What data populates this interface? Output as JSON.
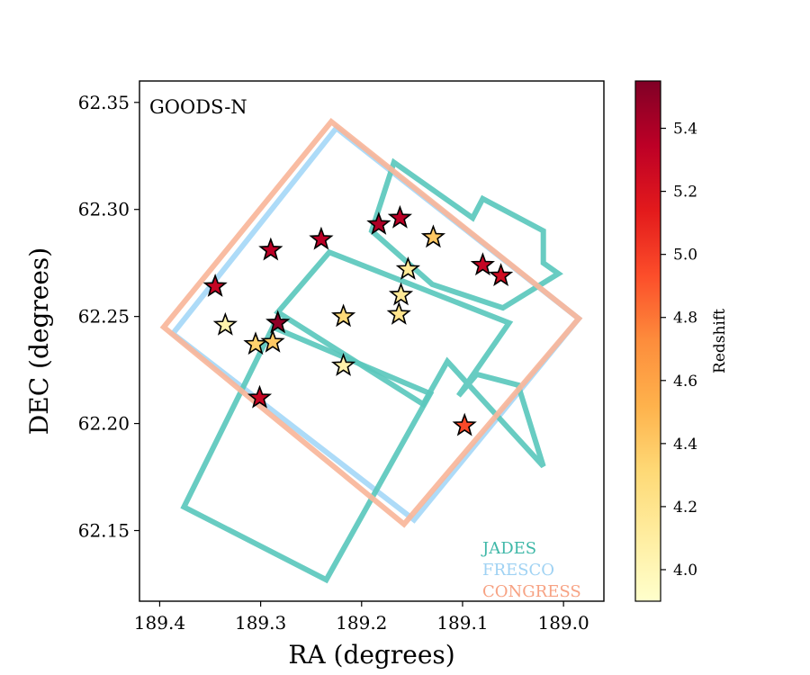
{
  "chart_data": {
    "type": "scatter",
    "annotation": "GOODS-N",
    "xlabel": "RA (degrees)",
    "ylabel": "DEC (degrees)",
    "xlim": [
      189.42,
      188.96
    ],
    "ylim": [
      62.117,
      62.36
    ],
    "x_ticks": [
      189.4,
      189.3,
      189.2,
      189.1,
      189.0
    ],
    "x_tick_labels": [
      "189.4",
      "189.3",
      "189.2",
      "189.1",
      "189.0"
    ],
    "y_ticks": [
      62.15,
      62.2,
      62.25,
      62.3,
      62.35
    ],
    "y_tick_labels": [
      "62.15",
      "62.20",
      "62.25",
      "62.30",
      "62.35"
    ],
    "colorbar": {
      "label": "Redshift",
      "range": [
        3.9,
        5.55
      ],
      "ticks": [
        4.0,
        4.2,
        4.4,
        4.6,
        4.8,
        5.0,
        5.2,
        5.4
      ],
      "tick_labels": [
        "4.0",
        "4.2",
        "4.4",
        "4.6",
        "4.8",
        "5.0",
        "5.2",
        "5.4"
      ],
      "colormap": "YlOrRd",
      "stops": [
        "#ffffcc",
        "#ffeda0",
        "#fed976",
        "#feb24c",
        "#fd8d3c",
        "#fc4e2a",
        "#e31a1c",
        "#bd0026",
        "#800026"
      ]
    },
    "footprints": [
      {
        "name": "FRESCO",
        "color": "#a6d8f7",
        "polygons": [
          [
            [
              189.225,
              62.338
            ],
            [
              188.985,
              62.249
            ],
            [
              189.148,
              62.155
            ],
            [
              189.387,
              62.242
            ]
          ]
        ]
      },
      {
        "name": "JADES",
        "color": "#5bc8bd",
        "polygons": [
          [
            [
              189.288,
              62.245
            ],
            [
              189.132,
              62.214
            ],
            [
              189.235,
              62.127
            ],
            [
              189.376,
              62.161
            ]
          ],
          [
            [
              189.232,
              62.28
            ],
            [
              189.054,
              62.247
            ],
            [
              189.104,
              62.213
            ],
            [
              189.086,
              62.223
            ],
            [
              189.045,
              62.218
            ],
            [
              189.02,
              62.18
            ],
            [
              189.115,
              62.229
            ],
            [
              189.139,
              62.209
            ],
            [
              189.283,
              62.252
            ]
          ],
          [
            [
              189.168,
              62.322
            ],
            [
              189.09,
              62.296
            ],
            [
              189.08,
              62.305
            ],
            [
              189.02,
              62.29
            ],
            [
              189.02,
              62.275
            ],
            [
              189.005,
              62.27
            ],
            [
              189.06,
              62.254
            ],
            [
              189.13,
              62.265
            ],
            [
              189.19,
              62.29
            ]
          ]
        ]
      },
      {
        "name": "CONGRESS",
        "color": "#f9b69a",
        "polygons": [
          [
            [
              189.23,
              62.341
            ],
            [
              188.985,
              62.249
            ],
            [
              189.158,
              62.153
            ],
            [
              189.396,
              62.245
            ]
          ]
        ]
      }
    ],
    "points": [
      {
        "ra": 189.345,
        "dec": 62.264,
        "z": 5.3
      },
      {
        "ra": 189.335,
        "dec": 62.246,
        "z": 4.05
      },
      {
        "ra": 189.305,
        "dec": 62.237,
        "z": 4.35
      },
      {
        "ra": 189.288,
        "dec": 62.238,
        "z": 4.4
      },
      {
        "ra": 189.29,
        "dec": 62.281,
        "z": 5.35
      },
      {
        "ra": 189.283,
        "dec": 62.247,
        "z": 5.5
      },
      {
        "ra": 189.301,
        "dec": 62.212,
        "z": 5.3
      },
      {
        "ra": 189.24,
        "dec": 62.286,
        "z": 5.35
      },
      {
        "ra": 189.218,
        "dec": 62.25,
        "z": 4.3
      },
      {
        "ra": 189.218,
        "dec": 62.227,
        "z": 4.05
      },
      {
        "ra": 189.183,
        "dec": 62.293,
        "z": 5.4
      },
      {
        "ra": 189.162,
        "dec": 62.296,
        "z": 5.35
      },
      {
        "ra": 189.154,
        "dec": 62.272,
        "z": 4.15
      },
      {
        "ra": 189.161,
        "dec": 62.26,
        "z": 4.15
      },
      {
        "ra": 189.163,
        "dec": 62.251,
        "z": 4.2
      },
      {
        "ra": 189.129,
        "dec": 62.287,
        "z": 4.4
      },
      {
        "ra": 189.08,
        "dec": 62.274,
        "z": 5.3
      },
      {
        "ra": 189.062,
        "dec": 62.269,
        "z": 5.25
      },
      {
        "ra": 189.098,
        "dec": 62.199,
        "z": 4.95
      }
    ],
    "legend": {
      "placement": "bottom-right",
      "entries": [
        {
          "label": "JADES",
          "color": "#3fb8a8"
        },
        {
          "label": "FRESCO",
          "color": "#9fd2f3"
        },
        {
          "label": "CONGRESS",
          "color": "#f7a283"
        }
      ]
    }
  }
}
